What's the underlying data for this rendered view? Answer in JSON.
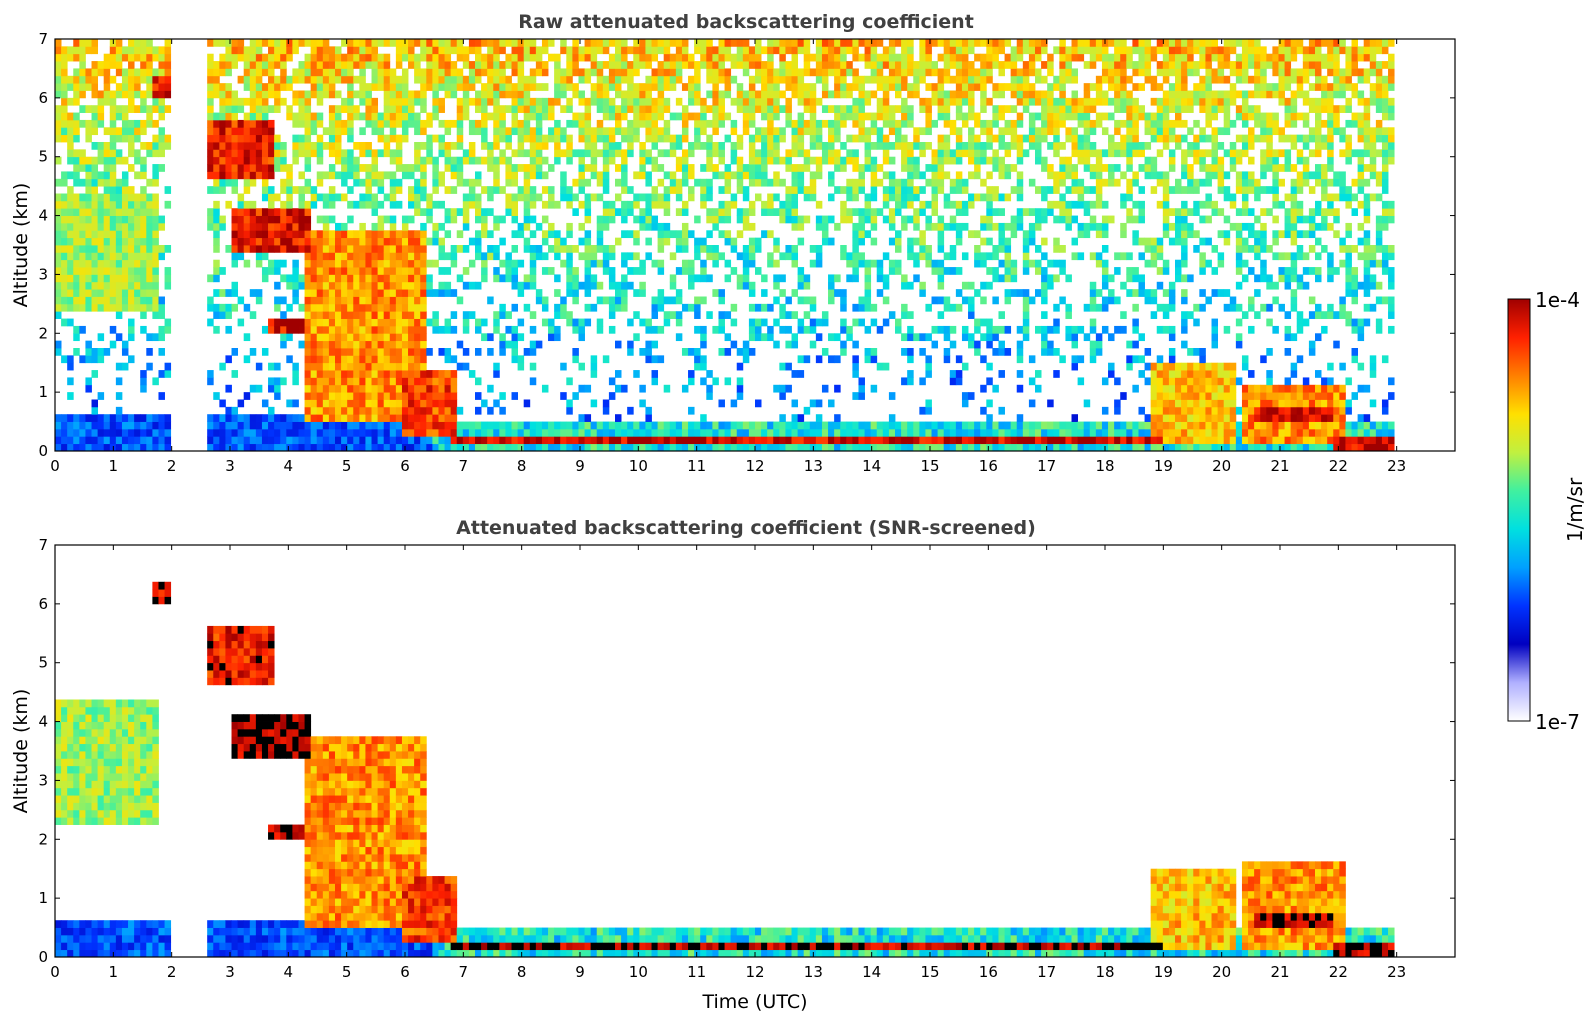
{
  "chart_data": [
    {
      "type": "heatmap",
      "title": "Raw attenuated backscattering coefficient",
      "ylabel": "Altitude (km)",
      "xlabel": "",
      "xlim": [
        0,
        24
      ],
      "ylim": [
        0,
        7
      ],
      "xticks": [
        "0",
        "1",
        "2",
        "3",
        "4",
        "5",
        "6",
        "7",
        "8",
        "9",
        "10",
        "11",
        "12",
        "13",
        "14",
        "15",
        "16",
        "17",
        "18",
        "19",
        "20",
        "21",
        "22",
        "23"
      ],
      "yticks": [
        "0",
        "1",
        "2",
        "3",
        "4",
        "5",
        "6",
        "7"
      ],
      "data_gap_hours": [
        1.95,
        2.6
      ],
      "data_end_hour": 22.95,
      "noise": "heavy",
      "features": [
        {
          "kind": "cloud",
          "t": [
            0.0,
            1.8
          ],
          "z": [
            2.4,
            4.4
          ],
          "level": 0.62
        },
        {
          "kind": "cloud",
          "t": [
            1.7,
            1.95
          ],
          "z": [
            6.0,
            6.4
          ],
          "level": 0.95
        },
        {
          "kind": "cloud",
          "t": [
            2.6,
            3.8
          ],
          "z": [
            4.6,
            5.6
          ],
          "level": 0.92
        },
        {
          "kind": "layer",
          "t": [
            3.0,
            4.4
          ],
          "z": [
            3.4,
            4.1
          ],
          "level": 0.93
        },
        {
          "kind": "layer",
          "t": [
            3.7,
            4.3
          ],
          "z": [
            2.0,
            2.25
          ],
          "level": 0.95
        },
        {
          "kind": "cloud",
          "t": [
            4.3,
            6.4
          ],
          "z": [
            0.5,
            3.8
          ],
          "level": 0.8
        },
        {
          "kind": "cloud",
          "t": [
            5.9,
            6.9
          ],
          "z": [
            0.2,
            1.4
          ],
          "level": 0.88
        },
        {
          "kind": "layer",
          "t": [
            6.8,
            19.0
          ],
          "z": [
            0.1,
            0.3
          ],
          "level": 0.97
        },
        {
          "kind": "cloud",
          "t": [
            18.8,
            20.2
          ],
          "z": [
            0.1,
            1.5
          ],
          "level": 0.75
        },
        {
          "kind": "cloud",
          "t": [
            20.3,
            22.1
          ],
          "z": [
            0.1,
            1.1
          ],
          "level": 0.8
        },
        {
          "kind": "layer",
          "t": [
            20.6,
            21.9
          ],
          "z": [
            0.55,
            0.75
          ],
          "level": 0.97
        },
        {
          "kind": "layer",
          "t": [
            21.9,
            22.95
          ],
          "z": [
            0.05,
            0.3
          ],
          "level": 0.97
        }
      ]
    },
    {
      "type": "heatmap",
      "title": "Attenuated backscattering coefficient (SNR-screened)",
      "ylabel": "Altitude (km)",
      "xlabel": "Time (UTC)",
      "xlim": [
        0,
        24
      ],
      "ylim": [
        0,
        7
      ],
      "xticks": [
        "0",
        "1",
        "2",
        "3",
        "4",
        "5",
        "6",
        "7",
        "8",
        "9",
        "10",
        "11",
        "12",
        "13",
        "14",
        "15",
        "16",
        "17",
        "18",
        "19",
        "20",
        "21",
        "22",
        "23"
      ],
      "yticks": [
        "0",
        "1",
        "2",
        "3",
        "4",
        "5",
        "6",
        "7"
      ],
      "data_gap_hours": [
        1.95,
        2.6
      ],
      "data_end_hour": 22.95,
      "noise": "screened",
      "features": [
        {
          "kind": "cloud",
          "t": [
            0.0,
            1.8
          ],
          "z": [
            2.2,
            4.4
          ],
          "level": 0.62
        },
        {
          "kind": "cloud",
          "t": [
            1.7,
            1.95
          ],
          "z": [
            6.0,
            6.4
          ],
          "level": 0.95
        },
        {
          "kind": "cloud",
          "t": [
            2.6,
            3.8
          ],
          "z": [
            4.6,
            5.6
          ],
          "level": 0.92
        },
        {
          "kind": "layer",
          "t": [
            3.0,
            4.4
          ],
          "z": [
            3.4,
            4.1
          ],
          "level": 1.0
        },
        {
          "kind": "layer",
          "t": [
            3.7,
            4.3
          ],
          "z": [
            2.0,
            2.25
          ],
          "level": 1.0
        },
        {
          "kind": "cloud",
          "t": [
            4.3,
            6.4
          ],
          "z": [
            0.5,
            3.8
          ],
          "level": 0.8
        },
        {
          "kind": "cloud",
          "t": [
            5.9,
            6.9
          ],
          "z": [
            0.2,
            1.4
          ],
          "level": 0.88
        },
        {
          "kind": "layer",
          "t": [
            6.8,
            19.0
          ],
          "z": [
            0.1,
            0.3
          ],
          "level": 1.0
        },
        {
          "kind": "cloud",
          "t": [
            18.8,
            20.2
          ],
          "z": [
            0.1,
            1.5
          ],
          "level": 0.75
        },
        {
          "kind": "cloud",
          "t": [
            20.3,
            22.1
          ],
          "z": [
            0.1,
            1.6
          ],
          "level": 0.8
        },
        {
          "kind": "layer",
          "t": [
            20.6,
            21.9
          ],
          "z": [
            0.55,
            0.75
          ],
          "level": 1.0
        },
        {
          "kind": "layer",
          "t": [
            21.9,
            22.95
          ],
          "z": [
            0.05,
            0.3
          ],
          "level": 1.0
        }
      ]
    }
  ],
  "colorbar": {
    "max_label": "1e-4",
    "min_label": "1e-7",
    "unit_label": "1/m/sr",
    "scale": "log",
    "colormap": "jet",
    "colors": [
      "#ffffff",
      "#b0b0ff",
      "#0000c0",
      "#0033ff",
      "#00a0ff",
      "#00e0e0",
      "#40f0a0",
      "#c0f040",
      "#ffe000",
      "#ff8000",
      "#ff2000",
      "#a00000"
    ]
  }
}
